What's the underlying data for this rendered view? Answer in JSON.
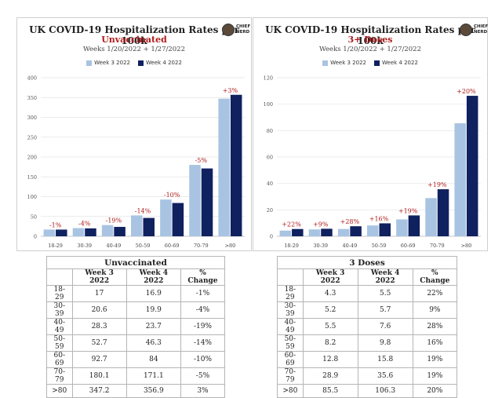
{
  "colors": {
    "week3": "#a8c4e2",
    "week4": "#10215f",
    "change": "#b01c1c",
    "grid": "#e4e4e4",
    "axis": "#bbbbbb"
  },
  "logo": {
    "icon": "chief-nerd-logo-icon",
    "line1": "CHIEF",
    "line2": "NERD"
  },
  "legend": {
    "week3": "Week 3 2022",
    "week4": "Week 4 2022"
  },
  "chart_data": [
    {
      "type": "bar",
      "title": "UK COVID-19 Hospitalization Rates per 100k",
      "subtitle": "Unvaccinated",
      "dates": "Weeks 1/20/2022 + 1/27/2022",
      "categories": [
        "18-29",
        "30-39",
        "40-49",
        "50-59",
        "60-69",
        "70-79",
        ">80"
      ],
      "series": [
        {
          "name": "Week 3 2022",
          "values": [
            17,
            20.6,
            28.3,
            52.7,
            92.7,
            180.1,
            347.2
          ]
        },
        {
          "name": "Week 4 2022",
          "values": [
            16.9,
            19.9,
            23.7,
            46.3,
            84,
            171.1,
            356.9
          ]
        }
      ],
      "annotations": [
        "-1%",
        "-4%",
        "-19%",
        "-14%",
        "-10%",
        "-5%",
        "+3%"
      ],
      "ylim": [
        0,
        400
      ],
      "yticks": [
        0,
        50,
        100,
        150,
        200,
        250,
        300,
        350,
        400
      ],
      "grid": true,
      "legend_position": "top-center"
    },
    {
      "type": "bar",
      "title": "UK COVID-19 Hospitalization Rates per 100k",
      "subtitle": "3+ Doses",
      "dates": "Weeks 1/20/2022 + 1/27/2022",
      "categories": [
        "18-29",
        "30-39",
        "40-49",
        "50-59",
        "60-69",
        "70-79",
        ">80"
      ],
      "series": [
        {
          "name": "Week 3 2022",
          "values": [
            4.3,
            5.2,
            5.5,
            8.2,
            12.8,
            28.9,
            85.5
          ]
        },
        {
          "name": "Week 4 2022",
          "values": [
            5.5,
            5.7,
            7.6,
            9.8,
            15.8,
            35.6,
            106.3
          ]
        }
      ],
      "annotations": [
        "+22%",
        "+9%",
        "+28%",
        "+16%",
        "+19%",
        "+19%",
        "+20%"
      ],
      "ylim": [
        0,
        120
      ],
      "yticks": [
        0,
        20,
        40,
        60,
        80,
        100,
        120
      ],
      "grid": true,
      "legend_position": "top-center"
    }
  ],
  "tables": {
    "left": {
      "caption": "Unvaccinated",
      "headers": [
        "",
        "Week 3 2022",
        "Week 4 2022",
        "% Change"
      ],
      "rows": [
        [
          "18-29",
          "17",
          "16.9",
          "-1%"
        ],
        [
          "30-39",
          "20.6",
          "19.9",
          "-4%"
        ],
        [
          "40-49",
          "28.3",
          "23.7",
          "-19%"
        ],
        [
          "50-59",
          "52.7",
          "46.3",
          "-14%"
        ],
        [
          "60-69",
          "92.7",
          "84",
          "-10%"
        ],
        [
          "70-79",
          "180.1",
          "171.1",
          "-5%"
        ],
        [
          ">80",
          "347.2",
          "356.9",
          "3%"
        ]
      ]
    },
    "right": {
      "caption": "3 Doses",
      "headers": [
        "",
        "Week 3 2022",
        "Week 4 2022",
        "% Change"
      ],
      "rows": [
        [
          "18-29",
          "4.3",
          "5.5",
          "22%"
        ],
        [
          "30-39",
          "5.2",
          "5.7",
          "9%"
        ],
        [
          "40-49",
          "5.5",
          "7.6",
          "28%"
        ],
        [
          "50-59",
          "8.2",
          "9.8",
          "16%"
        ],
        [
          "60-69",
          "12.8",
          "15.8",
          "19%"
        ],
        [
          "70-79",
          "28.9",
          "35.6",
          "19%"
        ],
        [
          ">80",
          "85.5",
          "106.3",
          "20%"
        ]
      ]
    }
  }
}
